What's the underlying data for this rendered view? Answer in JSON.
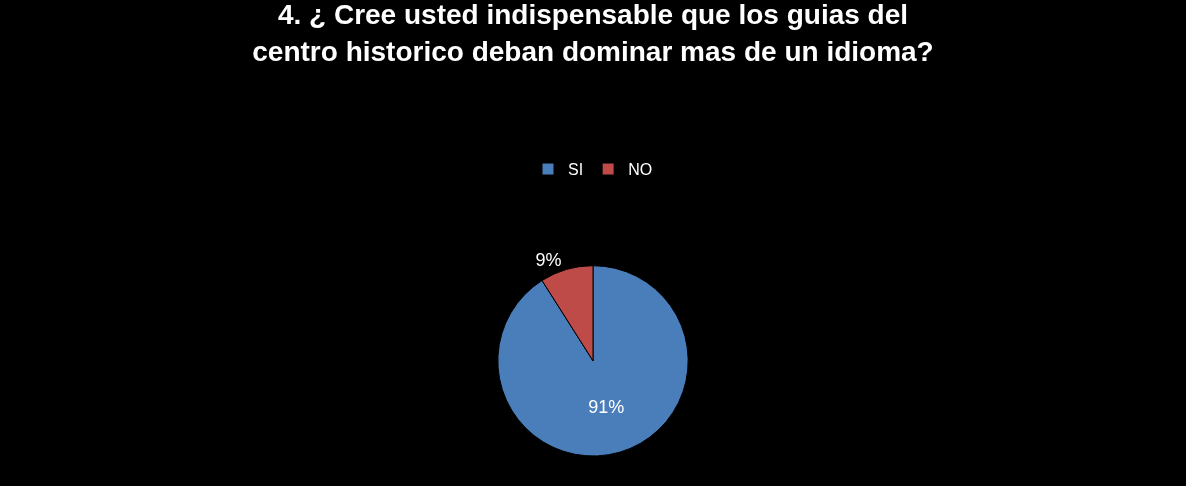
{
  "chart_data": {
    "type": "pie",
    "title": "4. ¿ Cree usted indispensable que los guias del\ncentro historico deban dominar mas de un idioma?",
    "categories": [
      "SI",
      "NO"
    ],
    "values": [
      91,
      9
    ],
    "colors": [
      "#4a7ebb",
      "#be4b48"
    ],
    "value_labels": [
      "91%",
      "9%"
    ],
    "legend": "top"
  }
}
